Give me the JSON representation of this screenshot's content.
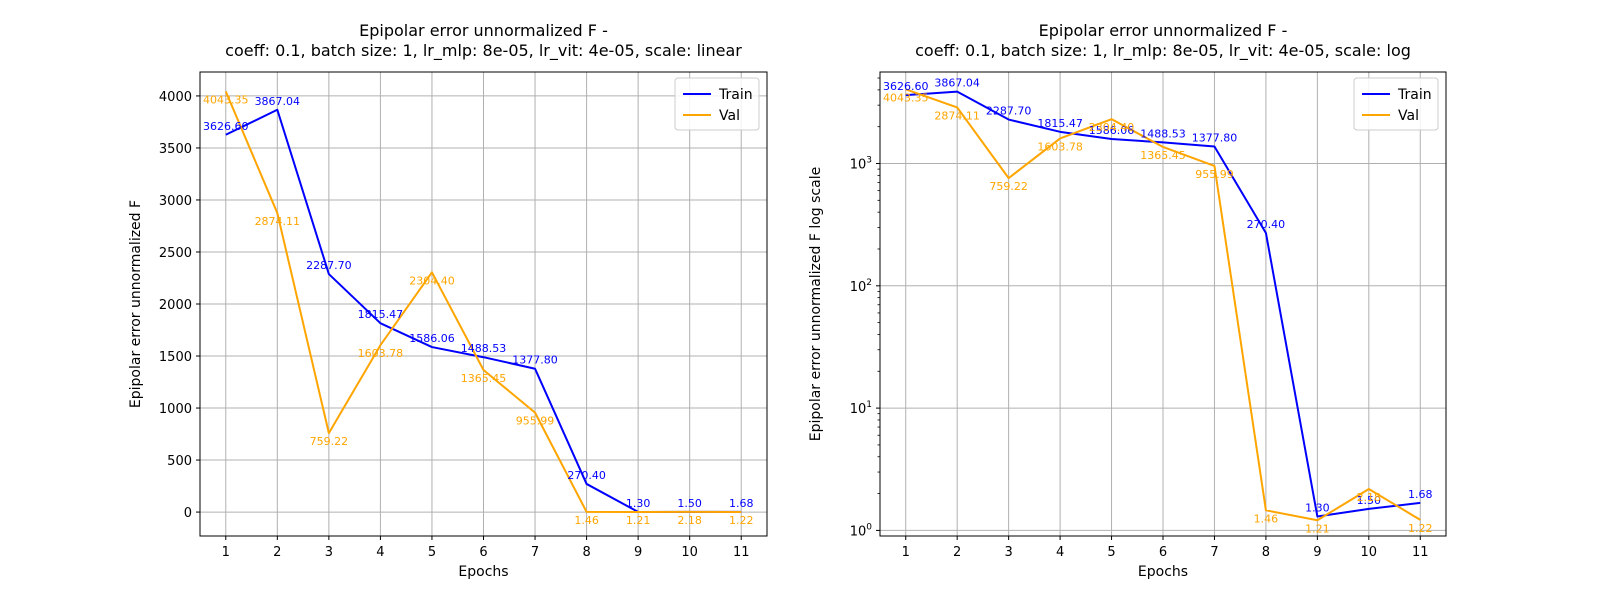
{
  "chart_data": [
    {
      "type": "line",
      "title_line1": "Epipolar error unnormalized F -",
      "title_line2": "coeff: 0.1, batch size: 1, lr_mlp: 8e-05, lr_vit: 4e-05, scale: linear",
      "xlabel": "Epochs",
      "ylabel": "Epipolar error unnormalized F",
      "yscale": "linear",
      "ylim": [
        -230,
        4230
      ],
      "xlim": [
        0.5,
        11.5
      ],
      "yticks": [
        0,
        500,
        1000,
        1500,
        2000,
        2500,
        3000,
        3500,
        4000
      ],
      "ytick_labels": [
        "0",
        "500",
        "1000",
        "1500",
        "2000",
        "2500",
        "3000",
        "3500",
        "4000"
      ],
      "x": [
        1,
        2,
        3,
        4,
        5,
        6,
        7,
        8,
        9,
        10,
        11
      ],
      "x_labels": [
        "1",
        "2",
        "3",
        "4",
        "5",
        "6",
        "7",
        "8",
        "9",
        "10",
        "11"
      ],
      "grid": true,
      "legend_position": "top-right",
      "series": [
        {
          "name": "Train",
          "color": "#0000ff",
          "values": [
            3626.6,
            3867.04,
            2287.7,
            1815.47,
            1586.06,
            1488.53,
            1377.8,
            270.4,
            1.3,
            1.5,
            1.68
          ],
          "labels": [
            "3626.60",
            "3867.04",
            "2287.70",
            "1815.47",
            "1586.06",
            "1488.53",
            "1377.80",
            "270.40",
            "1.30",
            "1.50",
            "1.68"
          ]
        },
        {
          "name": "Val",
          "color": "#ffa500",
          "values": [
            4043.35,
            2874.11,
            759.22,
            1603.78,
            2304.4,
            1365.45,
            955.99,
            1.46,
            1.21,
            2.18,
            1.22
          ],
          "labels": [
            "4043.35",
            "2874.11",
            "759.22",
            "1603.78",
            "2304.40",
            "1365.45",
            "955.99",
            "1.46",
            "1.21",
            "2.18",
            "1.22"
          ]
        }
      ]
    },
    {
      "type": "line",
      "title_line1": "Epipolar error unnormalized F -",
      "title_line2": "coeff: 0.1, batch size: 1, lr_mlp: 8e-05, lr_vit: 4e-05, scale: log",
      "xlabel": "Epochs",
      "ylabel": "Epipolar error unnormalized F log scale",
      "yscale": "log",
      "ylim": [
        0.9,
        5600
      ],
      "xlim": [
        0.5,
        11.5
      ],
      "yticks": [
        1,
        10,
        100,
        1000
      ],
      "ytick_labels": [
        "10^0",
        "10^1",
        "10^2",
        "10^3"
      ],
      "x": [
        1,
        2,
        3,
        4,
        5,
        6,
        7,
        8,
        9,
        10,
        11
      ],
      "x_labels": [
        "1",
        "2",
        "3",
        "4",
        "5",
        "6",
        "7",
        "8",
        "9",
        "10",
        "11"
      ],
      "grid": true,
      "legend_position": "top-right",
      "series": [
        {
          "name": "Train",
          "color": "#0000ff",
          "values": [
            3626.6,
            3867.04,
            2287.7,
            1815.47,
            1586.06,
            1488.53,
            1377.8,
            270.4,
            1.3,
            1.5,
            1.68
          ],
          "labels": [
            "3626.60",
            "3867.04",
            "2287.70",
            "1815.47",
            "1586.06",
            "1488.53",
            "1377.80",
            "270.40",
            "1.30",
            "1.50",
            "1.68"
          ]
        },
        {
          "name": "Val",
          "color": "#ffa500",
          "values": [
            4043.35,
            2874.11,
            759.22,
            1603.78,
            2304.4,
            1365.45,
            955.99,
            1.46,
            1.21,
            2.18,
            1.22
          ],
          "labels": [
            "4043.35",
            "2874.11",
            "759.22",
            "1603.78",
            "2304.40",
            "1365.45",
            "955.99",
            "1.46",
            "1.21",
            "2.18",
            "1.22"
          ]
        }
      ]
    }
  ]
}
